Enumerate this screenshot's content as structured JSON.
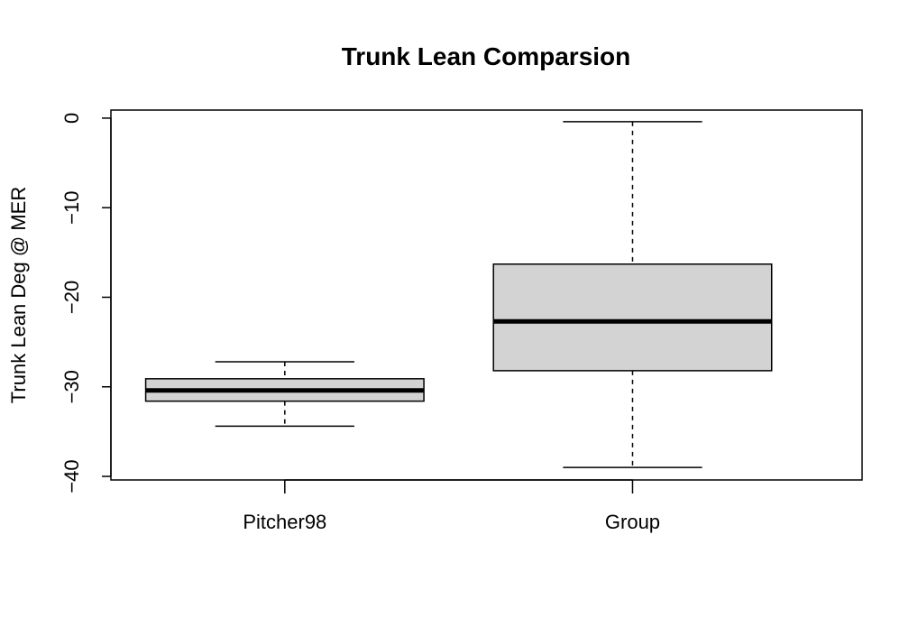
{
  "chart_data": {
    "type": "boxplot",
    "title": "Trunk Lean Comparsion",
    "xlabel": "",
    "ylabel": "Trunk Lean Deg @ MER",
    "ylim": [
      -40.4,
      0.9
    ],
    "yticks": [
      0,
      -10,
      -20,
      -30,
      -40
    ],
    "grid": false,
    "legend": "none",
    "box_fill": "#d3d3d3",
    "stroke": "#000000",
    "categories": [
      "Pitcher98",
      "Group"
    ],
    "boxes": [
      {
        "category": "Pitcher98",
        "whisker_low": -34.4,
        "q1": -31.6,
        "median": -30.4,
        "q3": -29.1,
        "whisker_high": -27.2
      },
      {
        "category": "Group",
        "whisker_low": -39.0,
        "q1": -28.2,
        "median": -22.7,
        "q3": -16.3,
        "whisker_high": -0.4
      }
    ]
  }
}
